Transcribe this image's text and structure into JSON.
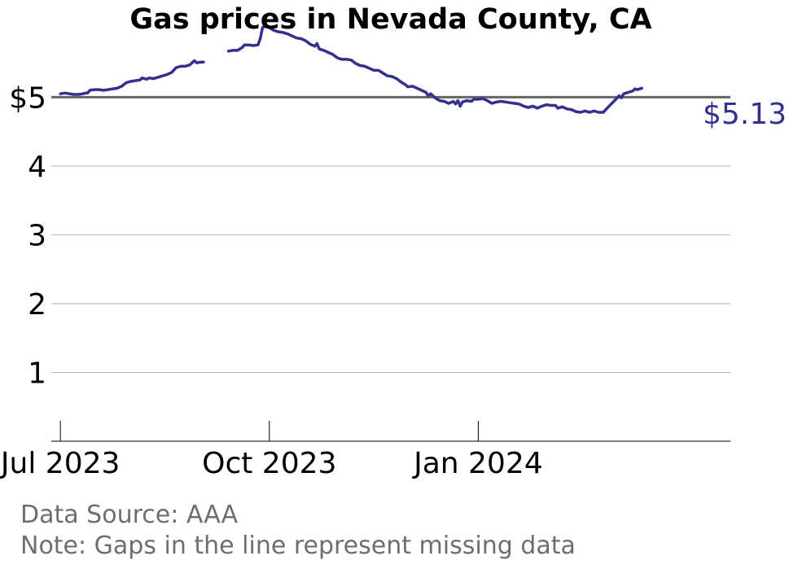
{
  "chart_data": {
    "type": "line",
    "title": "Gas prices in Nevada County, CA",
    "xlabel": "",
    "ylabel": "",
    "x_start": "2023-06-27",
    "x_end": "2024-04-21",
    "y_range": [
      0,
      5.75
    ],
    "y_ticks": [
      {
        "value": 1,
        "label": "1"
      },
      {
        "value": 2,
        "label": "2"
      },
      {
        "value": 3,
        "label": "3"
      },
      {
        "value": 4,
        "label": "4"
      },
      {
        "value": 5,
        "label": "$5"
      }
    ],
    "x_ticks": [
      {
        "date": "2023-07-01",
        "label": "Jul 2023"
      },
      {
        "date": "2023-10-01",
        "label": "Oct 2023"
      },
      {
        "date": "2024-01-01",
        "label": "Jan 2024"
      }
    ],
    "reference_line": 5,
    "grid": true,
    "legend": "none",
    "last_value_label": "$5.13",
    "series": [
      {
        "color": "#33308f",
        "segments": [
          [
            [
              "2023-07-01",
              5.05
            ],
            [
              "2023-07-03",
              5.06
            ],
            [
              "2023-07-05",
              5.05
            ],
            [
              "2023-07-07",
              5.04
            ],
            [
              "2023-07-09",
              5.04
            ],
            [
              "2023-07-11",
              5.05
            ],
            [
              "2023-07-12",
              5.06
            ],
            [
              "2023-07-13",
              5.06
            ],
            [
              "2023-07-14",
              5.1
            ],
            [
              "2023-07-16",
              5.11
            ],
            [
              "2023-07-18",
              5.11
            ],
            [
              "2023-07-20",
              5.1
            ],
            [
              "2023-07-22",
              5.11
            ],
            [
              "2023-07-24",
              5.12
            ],
            [
              "2023-07-26",
              5.13
            ],
            [
              "2023-07-28",
              5.16
            ],
            [
              "2023-07-30",
              5.21
            ],
            [
              "2023-08-01",
              5.23
            ],
            [
              "2023-08-03",
              5.24
            ],
            [
              "2023-08-05",
              5.25
            ],
            [
              "2023-08-06",
              5.28
            ],
            [
              "2023-08-08",
              5.26
            ],
            [
              "2023-08-09",
              5.28
            ],
            [
              "2023-08-11",
              5.27
            ],
            [
              "2023-08-13",
              5.29
            ],
            [
              "2023-08-15",
              5.31
            ],
            [
              "2023-08-17",
              5.33
            ],
            [
              "2023-08-19",
              5.36
            ],
            [
              "2023-08-21",
              5.43
            ],
            [
              "2023-08-23",
              5.45
            ],
            [
              "2023-08-25",
              5.45
            ],
            [
              "2023-08-27",
              5.47
            ],
            [
              "2023-08-29",
              5.53
            ],
            [
              "2023-08-30",
              5.5
            ],
            [
              "2023-09-01",
              5.51
            ],
            [
              "2023-09-02",
              5.51
            ]
          ],
          [
            [
              "2023-09-13",
              5.67
            ],
            [
              "2023-09-15",
              5.68
            ],
            [
              "2023-09-17",
              5.68
            ],
            [
              "2023-09-19",
              5.72
            ],
            [
              "2023-09-20",
              5.76
            ],
            [
              "2023-09-22",
              5.76
            ],
            [
              "2023-09-24",
              5.75
            ],
            [
              "2023-09-26",
              5.76
            ],
            [
              "2023-09-27",
              5.85
            ],
            [
              "2023-09-28",
              6.01
            ],
            [
              "2023-09-29",
              6.03
            ],
            [
              "2023-10-01",
              6.01
            ],
            [
              "2023-10-03",
              5.97
            ],
            [
              "2023-10-05",
              5.95
            ],
            [
              "2023-10-07",
              5.94
            ],
            [
              "2023-10-09",
              5.92
            ],
            [
              "2023-10-11",
              5.89
            ],
            [
              "2023-10-13",
              5.86
            ],
            [
              "2023-10-15",
              5.85
            ],
            [
              "2023-10-17",
              5.82
            ],
            [
              "2023-10-19",
              5.77
            ],
            [
              "2023-10-21",
              5.74
            ],
            [
              "2023-10-22",
              5.78
            ],
            [
              "2023-10-23",
              5.7
            ],
            [
              "2023-10-25",
              5.68
            ],
            [
              "2023-10-27",
              5.65
            ],
            [
              "2023-10-29",
              5.62
            ],
            [
              "2023-10-31",
              5.57
            ],
            [
              "2023-11-02",
              5.55
            ],
            [
              "2023-11-04",
              5.55
            ],
            [
              "2023-11-06",
              5.54
            ],
            [
              "2023-11-08",
              5.49
            ],
            [
              "2023-11-10",
              5.46
            ],
            [
              "2023-11-12",
              5.45
            ],
            [
              "2023-11-14",
              5.42
            ],
            [
              "2023-11-16",
              5.39
            ],
            [
              "2023-11-18",
              5.39
            ],
            [
              "2023-11-20",
              5.35
            ],
            [
              "2023-11-22",
              5.31
            ],
            [
              "2023-11-24",
              5.3
            ],
            [
              "2023-11-26",
              5.27
            ],
            [
              "2023-11-28",
              5.22
            ],
            [
              "2023-11-30",
              5.18
            ],
            [
              "2023-12-01",
              5.15
            ],
            [
              "2023-12-03",
              5.16
            ],
            [
              "2023-12-05",
              5.13
            ],
            [
              "2023-12-07",
              5.1
            ],
            [
              "2023-12-09",
              5.07
            ],
            [
              "2023-12-10",
              5.02
            ],
            [
              "2023-12-11",
              5.05
            ],
            [
              "2023-12-13",
              4.99
            ],
            [
              "2023-12-15",
              4.95
            ],
            [
              "2023-12-17",
              4.94
            ],
            [
              "2023-12-19",
              4.91
            ],
            [
              "2023-12-21",
              4.94
            ],
            [
              "2023-12-22",
              4.9
            ],
            [
              "2023-12-23",
              4.95
            ],
            [
              "2023-12-24",
              4.87
            ],
            [
              "2023-12-25",
              4.93
            ],
            [
              "2023-12-27",
              4.95
            ],
            [
              "2023-12-29",
              4.94
            ],
            [
              "2023-12-30",
              4.97
            ],
            [
              "2024-01-01",
              4.97
            ],
            [
              "2024-01-03",
              4.98
            ],
            [
              "2024-01-05",
              4.95
            ],
            [
              "2024-01-07",
              4.91
            ],
            [
              "2024-01-09",
              4.93
            ],
            [
              "2024-01-11",
              4.94
            ],
            [
              "2024-01-13",
              4.93
            ],
            [
              "2024-01-15",
              4.92
            ],
            [
              "2024-01-17",
              4.91
            ],
            [
              "2024-01-19",
              4.9
            ],
            [
              "2024-01-21",
              4.87
            ],
            [
              "2024-01-23",
              4.85
            ],
            [
              "2024-01-25",
              4.87
            ],
            [
              "2024-01-27",
              4.84
            ],
            [
              "2024-01-29",
              4.87
            ],
            [
              "2024-01-31",
              4.89
            ],
            [
              "2024-02-02",
              4.88
            ],
            [
              "2024-02-04",
              4.88
            ],
            [
              "2024-02-05",
              4.84
            ],
            [
              "2024-02-07",
              4.86
            ],
            [
              "2024-02-09",
              4.83
            ],
            [
              "2024-02-11",
              4.82
            ],
            [
              "2024-02-13",
              4.79
            ],
            [
              "2024-02-15",
              4.78
            ],
            [
              "2024-02-17",
              4.8
            ],
            [
              "2024-02-19",
              4.78
            ],
            [
              "2024-02-21",
              4.8
            ],
            [
              "2024-02-23",
              4.78
            ],
            [
              "2024-02-25",
              4.78
            ],
            [
              "2024-02-27",
              4.85
            ],
            [
              "2024-03-01",
              4.95
            ],
            [
              "2024-03-03",
              5.02
            ],
            [
              "2024-03-04",
              4.99
            ],
            [
              "2024-03-05",
              5.05
            ],
            [
              "2024-03-07",
              5.07
            ],
            [
              "2024-03-09",
              5.09
            ],
            [
              "2024-03-10",
              5.12
            ],
            [
              "2024-03-11",
              5.11
            ],
            [
              "2024-03-13",
              5.13
            ]
          ]
        ]
      }
    ],
    "footnotes": {
      "source": "Data Source: AAA",
      "note": "Note: Gaps in the line represent missing data"
    }
  }
}
